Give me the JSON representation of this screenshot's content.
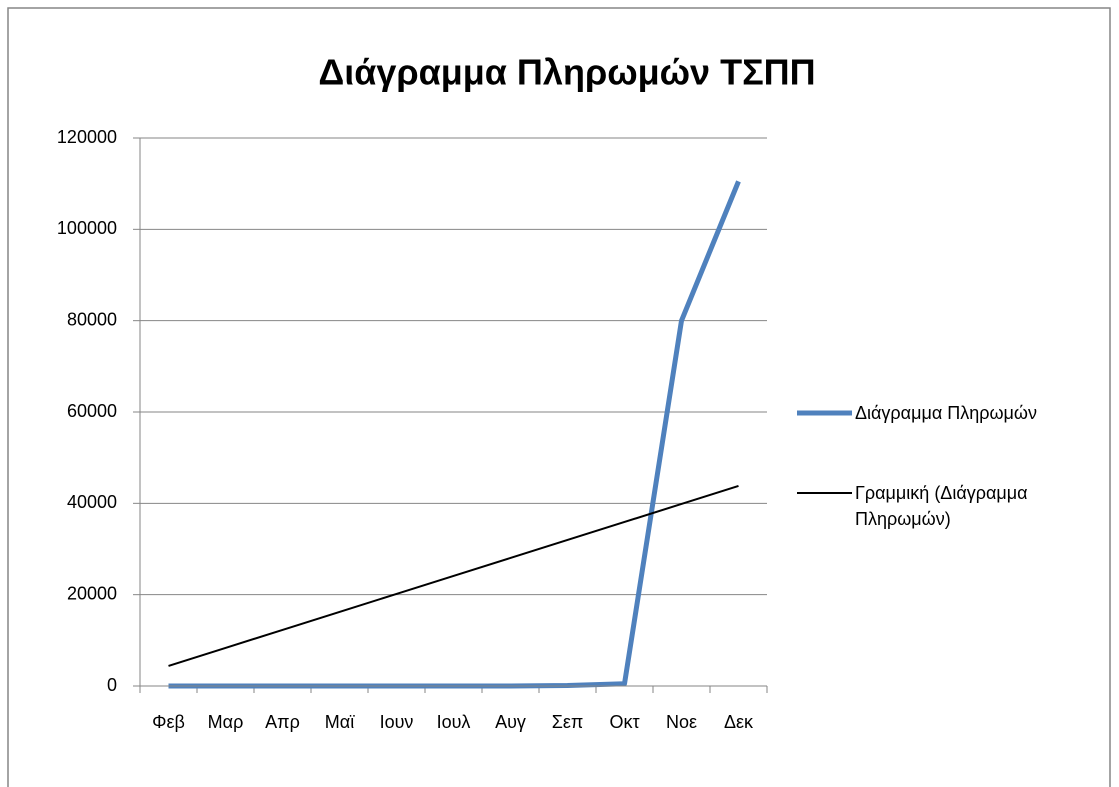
{
  "chart_data": {
    "type": "line",
    "title": "Διάγραμμα Πληρωμών ΤΣΠΠ",
    "categories": [
      "Φεβ",
      "Μαρ",
      "Απρ",
      "Μαϊ",
      "Ιουν",
      "Ιουλ",
      "Αυγ",
      "Σεπ",
      "Οκτ",
      "Νοε",
      "Δεκ"
    ],
    "series": [
      {
        "name": "Διάγραμμα Πληρωμών",
        "color": "#4f81bd",
        "values": [
          0,
          0,
          0,
          0,
          0,
          0,
          0,
          100,
          500,
          80000,
          110500
        ]
      },
      {
        "name": "Γραμμική (Διάγραμμα Πληρωμών)",
        "color": "#000000",
        "values": [
          4400,
          8340,
          12280,
          16220,
          20160,
          24100,
          28040,
          31980,
          35920,
          39860,
          43800
        ]
      }
    ],
    "ylim": [
      0,
      120000
    ],
    "yticks": [
      0,
      20000,
      40000,
      60000,
      80000,
      100000,
      120000
    ],
    "grid": true,
    "legend": "right"
  }
}
